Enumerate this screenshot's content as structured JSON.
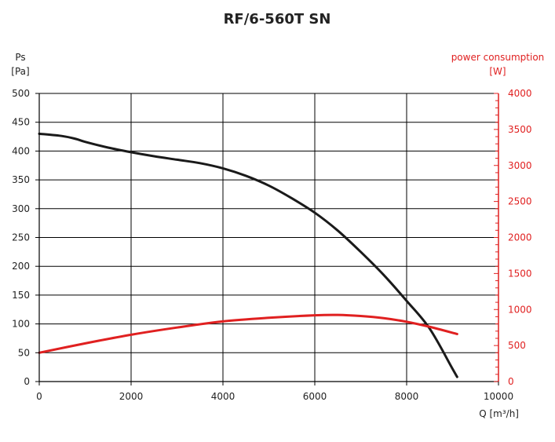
{
  "chart_data": {
    "type": "line",
    "title": "RF/6-560T SN",
    "xlabel": "Q [m³/h]",
    "ylabel_left": [
      "Ps",
      "[Pa]"
    ],
    "ylabel_right": [
      "power consumption",
      "[W]"
    ],
    "xlim": [
      0,
      10000
    ],
    "ylim_left": [
      0,
      500
    ],
    "ylim_right": [
      0,
      4000
    ],
    "x_ticks": [
      0,
      2000,
      4000,
      6000,
      8000,
      10000
    ],
    "y_ticks_left": [
      0,
      50,
      100,
      150,
      200,
      250,
      300,
      350,
      400,
      450,
      500
    ],
    "y_ticks_right": [
      0,
      500,
      1000,
      1500,
      2000,
      2500,
      3000,
      3500,
      4000
    ],
    "grid": true,
    "colors": {
      "pressure": "#1a1a1a",
      "power": "#e02020",
      "grid": "#000000",
      "left_axis_text": "#222222",
      "right_axis_text": "#e02020"
    },
    "series": [
      {
        "axis": "left",
        "x": [
          0,
          500,
          800,
          1000,
          1500,
          2000,
          2500,
          3000,
          3500,
          4000,
          4500,
          5000,
          5500,
          6000,
          6500,
          7000,
          7500,
          8000,
          8500,
          9000,
          9100
        ],
        "values": [
          430,
          426,
          421,
          416,
          406,
          398,
          391,
          385,
          379,
          370,
          357,
          340,
          318,
          293,
          262,
          225,
          185,
          140,
          92,
          22,
          8
        ]
      },
      {
        "axis": "right",
        "x": [
          0,
          1000,
          2000,
          3000,
          4000,
          5000,
          6000,
          6500,
          7000,
          7500,
          8000,
          8500,
          9100
        ],
        "values": [
          400,
          530,
          650,
          750,
          835,
          885,
          920,
          925,
          910,
          880,
          830,
          760,
          660
        ]
      }
    ]
  }
}
